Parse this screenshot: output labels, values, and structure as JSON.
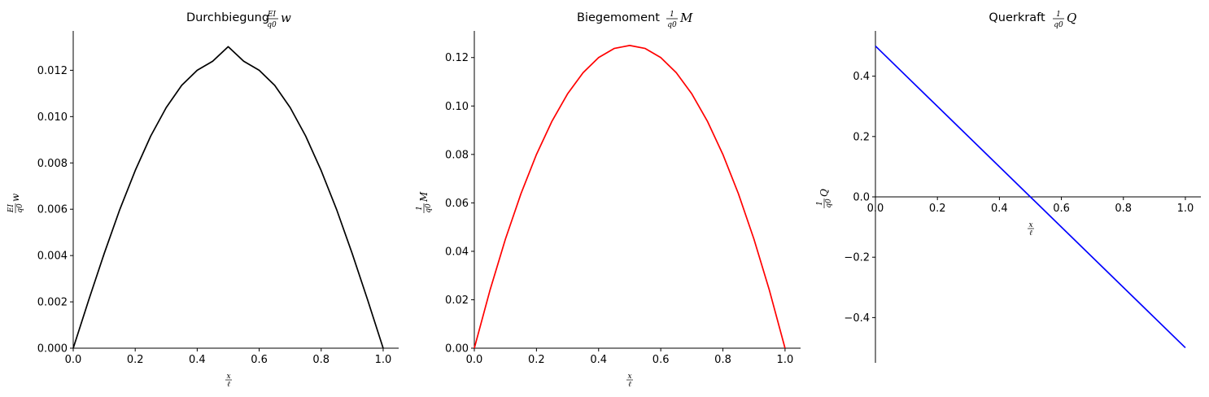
{
  "chart_data": [
    {
      "type": "line",
      "title": {
        "prefix": "Durchbiegung ",
        "num": "EI",
        "den": "q0",
        "symbol": "w"
      },
      "ylabel": {
        "num": "EI",
        "den": "q0",
        "symbol": "w"
      },
      "xlabel": {
        "num": "x",
        "den": "ℓ"
      },
      "color": "#000000",
      "xlim": [
        -0.0,
        1.05
      ],
      "ylim": [
        0.0,
        0.0137
      ],
      "xticks": [
        0.0,
        0.2,
        0.4,
        0.6,
        0.8,
        1.0
      ],
      "xtick_labels": [
        "0.0",
        "0.2",
        "0.4",
        "0.6",
        "0.8",
        "1.0"
      ],
      "yticks": [
        0.0,
        0.002,
        0.004,
        0.006,
        0.008,
        0.01,
        0.012
      ],
      "ytick_labels": [
        "0.000",
        "0.002",
        "0.004",
        "0.006",
        "0.008",
        "0.010",
        "0.012"
      ],
      "x": [
        0.0,
        0.05,
        0.1,
        0.15,
        0.2,
        0.25,
        0.3,
        0.35,
        0.4,
        0.45,
        0.5,
        0.55,
        0.6,
        0.65,
        0.7,
        0.75,
        0.8,
        0.85,
        0.9,
        0.95,
        1.0
      ],
      "y": [
        0.0,
        0.00208,
        0.00409,
        0.00598,
        0.00767,
        0.00916,
        0.01039,
        0.01135,
        0.012,
        0.01239,
        0.01302,
        0.01239,
        0.012,
        0.01135,
        0.01039,
        0.00916,
        0.00767,
        0.00598,
        0.00409,
        0.00208,
        0.0
      ]
    },
    {
      "type": "line",
      "title": {
        "prefix": "Biegemoment ",
        "num": "1",
        "den": "q0",
        "symbol": "M"
      },
      "ylabel": {
        "num": "1",
        "den": "q0",
        "symbol": "M"
      },
      "xlabel": {
        "num": "x",
        "den": "ℓ"
      },
      "color": "#ff0000",
      "xlim": [
        0.0,
        1.05
      ],
      "ylim": [
        0.0,
        0.131
      ],
      "xticks": [
        0.0,
        0.2,
        0.4,
        0.6,
        0.8,
        1.0
      ],
      "xtick_labels": [
        "0.0",
        "0.2",
        "0.4",
        "0.6",
        "0.8",
        "1.0"
      ],
      "yticks": [
        0.0,
        0.02,
        0.04,
        0.06,
        0.08,
        0.1,
        0.12
      ],
      "ytick_labels": [
        "0.00",
        "0.02",
        "0.04",
        "0.06",
        "0.08",
        "0.10",
        "0.12"
      ],
      "x": [
        0.0,
        0.05,
        0.1,
        0.15,
        0.2,
        0.25,
        0.3,
        0.35,
        0.4,
        0.45,
        0.5,
        0.55,
        0.6,
        0.65,
        0.7,
        0.75,
        0.8,
        0.85,
        0.9,
        0.95,
        1.0
      ],
      "y": [
        0.0,
        0.02375,
        0.045,
        0.06375,
        0.08,
        0.09375,
        0.105,
        0.11375,
        0.12,
        0.12375,
        0.125,
        0.12375,
        0.12,
        0.11375,
        0.105,
        0.09375,
        0.08,
        0.06375,
        0.045,
        0.02375,
        0.0
      ]
    },
    {
      "type": "line",
      "title": {
        "prefix": "Querkraft ",
        "num": "1",
        "den": "q0",
        "symbol": "Q"
      },
      "ylabel": {
        "num": "1",
        "den": "q0",
        "symbol": "Q"
      },
      "xlabel": {
        "num": "x",
        "den": "ℓ"
      },
      "color": "#0000ff",
      "xlim": [
        0.0,
        1.05
      ],
      "ylim": [
        -0.55,
        0.55
      ],
      "xticks": [
        0.0,
        0.2,
        0.4,
        0.6,
        0.8,
        1.0
      ],
      "xtick_labels": [
        "0.0",
        "0.2",
        "0.4",
        "0.6",
        "0.8",
        "1.0"
      ],
      "yticks": [
        -0.4,
        -0.2,
        0.0,
        0.2,
        0.4
      ],
      "ytick_labels": [
        "−0.4",
        "−0.2",
        "0.0",
        "0.2",
        "0.4"
      ],
      "x": [
        0.0,
        1.0
      ],
      "y": [
        0.5,
        -0.5
      ]
    }
  ]
}
